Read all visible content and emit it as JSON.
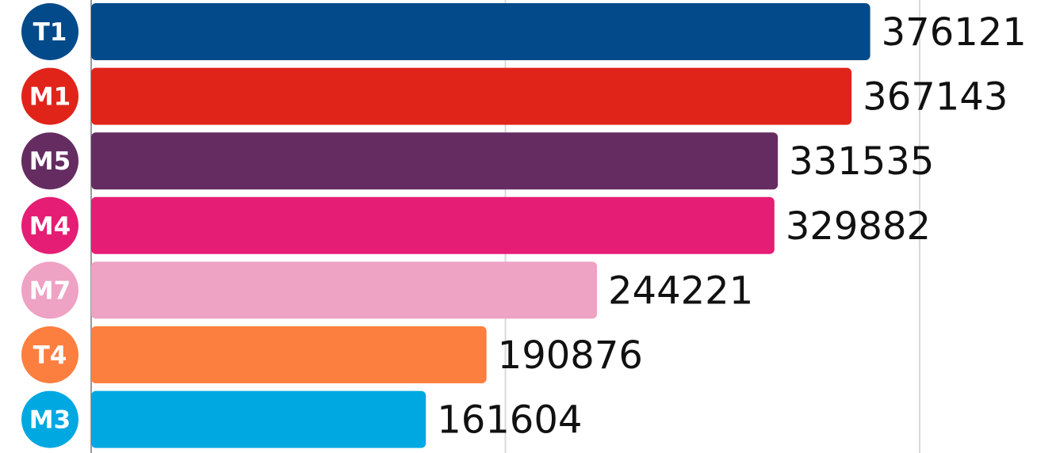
{
  "chart_data": {
    "type": "bar",
    "orientation": "horizontal",
    "categories": [
      "T1",
      "M1",
      "M5",
      "M4",
      "M7",
      "T4",
      "M3"
    ],
    "values": [
      376121,
      367143,
      331535,
      329882,
      244221,
      190876,
      161604
    ],
    "value_labels": [
      "376121",
      "367143",
      "331535",
      "329882",
      "244221",
      "190876",
      "161604"
    ],
    "colors": [
      "#034A8A",
      "#E1241A",
      "#652C62",
      "#E61D74",
      "#EEA2C4",
      "#FD7F40",
      "#00A8E2"
    ],
    "xlim": [
      0,
      400000
    ],
    "gridlines_at": [
      0,
      200000,
      400000
    ],
    "grid": true,
    "title": "",
    "xlabel": "",
    "ylabel": "",
    "legend": "none"
  }
}
